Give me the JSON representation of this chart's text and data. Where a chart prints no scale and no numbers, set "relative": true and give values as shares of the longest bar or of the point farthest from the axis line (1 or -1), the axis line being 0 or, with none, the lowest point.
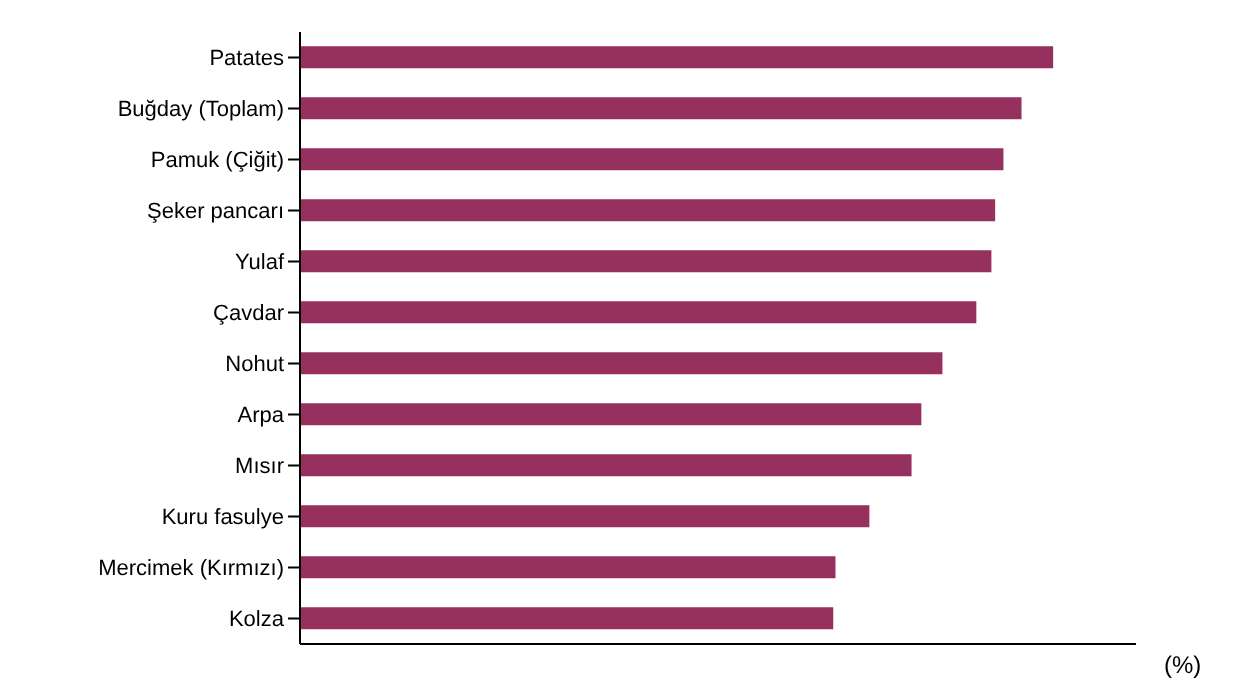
{
  "chart_data": {
    "type": "bar",
    "orientation": "horizontal",
    "relative": true,
    "xlabel": "(%)",
    "categories": [
      "Patates",
      "Buğday (Toplam)",
      "Pamuk (Çiğit)",
      "Şeker pancarı",
      "Yulaf",
      "Çavdar",
      "Nohut",
      "Arpa",
      "Mısır",
      "Kuru fasulye",
      "Mercimek (Kırmızı)",
      "Kolza"
    ],
    "values": [
      1,
      0.958,
      0.934,
      0.923,
      0.918,
      0.898,
      0.853,
      0.825,
      0.812,
      0.756,
      0.711,
      0.708
    ],
    "color": "#96305f",
    "grid": false,
    "legend": false
  }
}
